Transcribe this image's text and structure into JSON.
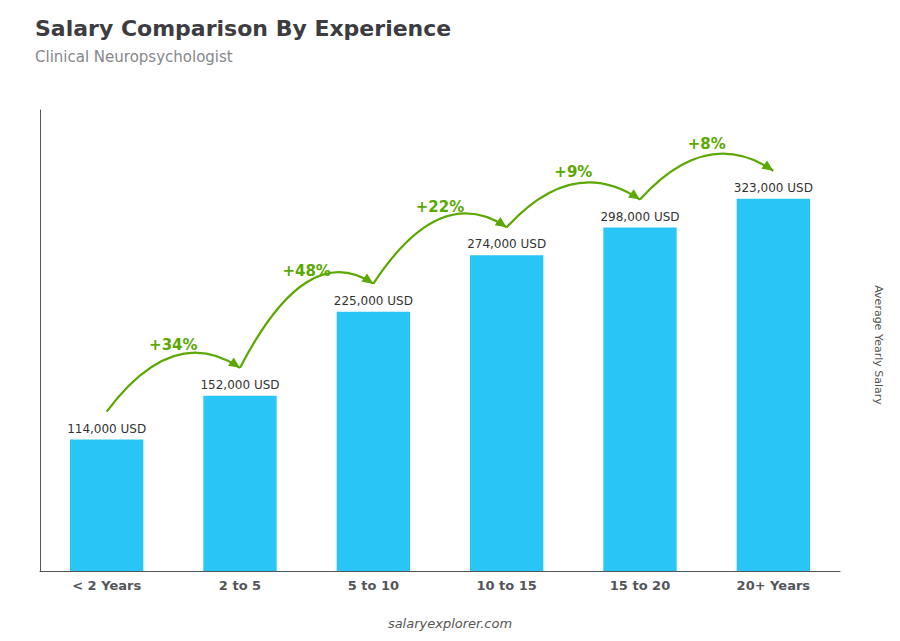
{
  "chart_data": {
    "type": "bar",
    "title": "Salary Comparison By Experience",
    "subtitle": "Clinical Neuropsychologist",
    "categories": [
      "< 2 Years",
      "2 to 5",
      "5 to 10",
      "10 to 15",
      "15 to 20",
      "20+ Years"
    ],
    "values": [
      114000,
      152000,
      225000,
      274000,
      298000,
      323000
    ],
    "value_labels": [
      "114,000 USD",
      "152,000 USD",
      "225,000 USD",
      "274,000 USD",
      "298,000 USD",
      "323,000 USD"
    ],
    "data_labels": true,
    "color": "#29C5F6",
    "ylim": [
      0,
      400000
    ],
    "grid": false,
    "tick_labels": "x",
    "annotations": [
      {
        "text": "+34%",
        "between": [
          "< 2 Years",
          "2 to 5"
        ]
      },
      {
        "text": "+48%",
        "between": [
          "2 to 5",
          "5 to 10"
        ]
      },
      {
        "text": "+22%",
        "between": [
          "5 to 10",
          "10 to 15"
        ]
      },
      {
        "text": "+9%",
        "between": [
          "10 to 15",
          "15 to 20"
        ]
      },
      {
        "text": "+8%",
        "between": [
          "15 to 20",
          "20+ Years"
        ]
      },
      {
        "text": "Average Yearly Salary"
      },
      {
        "text": "salaryexplorer.com"
      }
    ]
  }
}
